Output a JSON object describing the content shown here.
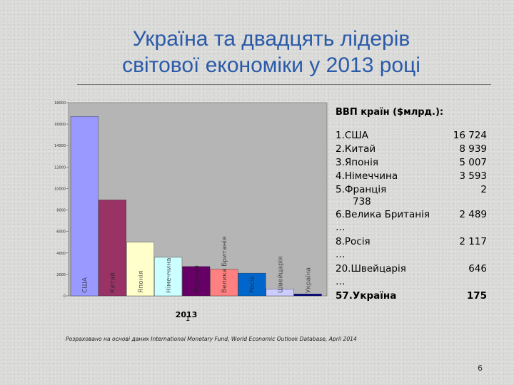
{
  "slide": {
    "title_line1": "Україна та двадцять лідерів",
    "title_line2": "світової економіки у 2013 році",
    "source": "Розраховано на основі даних International Monetary Fund, World Economic Outlook Database, April 2014",
    "page_number": "6"
  },
  "info_panel": {
    "header": "ВВП країн ($млрд.):",
    "ellipsis": "…",
    "rows": [
      {
        "name": "1.США",
        "value": "16 724"
      },
      {
        "name": "2.Китай",
        "value": "8 939"
      },
      {
        "name": "3.Японія",
        "value": "5 007"
      },
      {
        "name": "4.Німеччина",
        "value": "3 593"
      },
      {
        "name": "5.Франція",
        "value": "2",
        "cont": "738"
      },
      {
        "name": "6.Велика Британія",
        "value": "2 489"
      },
      {
        "name": "8.Росія",
        "value": "2 117"
      },
      {
        "name": "20.Швейцарія",
        "value": "646"
      },
      {
        "name": "57.Україна",
        "value": "175"
      }
    ]
  },
  "colors": {
    "title": "#2a5aa8",
    "plot_bg": "#b5b5b5",
    "bars": [
      "#9999ff",
      "#993366",
      "#ffffcc",
      "#ccffff",
      "#660066",
      "#ff8080",
      "#0066cc",
      "#ccccff",
      "#000080"
    ]
  },
  "chart_data": {
    "type": "bar",
    "categories": [
      "США",
      "Китай",
      "Японія",
      "Німеччина",
      "Франція",
      "Велика Британія",
      "Росія",
      "Швейцарія",
      "Україна"
    ],
    "values": [
      16724,
      8939,
      5007,
      3593,
      2738,
      2489,
      2117,
      646,
      175
    ],
    "ylim": [
      0,
      18000
    ],
    "yticks": [
      0,
      2000,
      4000,
      6000,
      8000,
      10000,
      12000,
      14000,
      16000,
      18000
    ],
    "xlabel": "2013",
    "x_marker": "1",
    "ylabel": "",
    "legend": "none"
  }
}
